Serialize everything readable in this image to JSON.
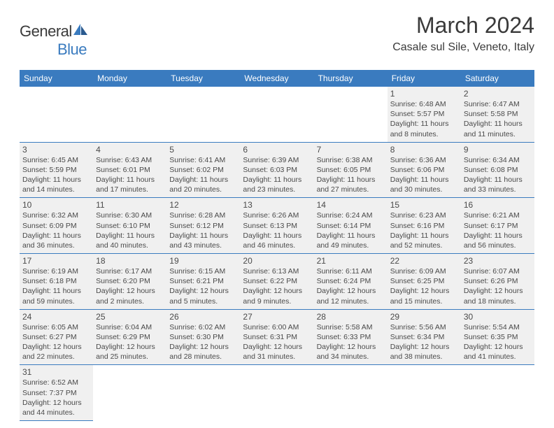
{
  "logo": {
    "text1": "General",
    "text2": "Blue"
  },
  "title": "March 2024",
  "location": "Casale sul Sile, Veneto, Italy",
  "colors": {
    "header_bg": "#3a7bbf",
    "cell_bg": "#f0f0f0",
    "cell_border": "#3a7bbf",
    "text": "#3a3a3a"
  },
  "weekdays": [
    "Sunday",
    "Monday",
    "Tuesday",
    "Wednesday",
    "Thursday",
    "Friday",
    "Saturday"
  ],
  "grid": {
    "leading_blanks": 5,
    "days": [
      {
        "n": "1",
        "sr": "6:48 AM",
        "ss": "5:57 PM",
        "dl": "11 hours and 8 minutes."
      },
      {
        "n": "2",
        "sr": "6:47 AM",
        "ss": "5:58 PM",
        "dl": "11 hours and 11 minutes."
      },
      {
        "n": "3",
        "sr": "6:45 AM",
        "ss": "5:59 PM",
        "dl": "11 hours and 14 minutes."
      },
      {
        "n": "4",
        "sr": "6:43 AM",
        "ss": "6:01 PM",
        "dl": "11 hours and 17 minutes."
      },
      {
        "n": "5",
        "sr": "6:41 AM",
        "ss": "6:02 PM",
        "dl": "11 hours and 20 minutes."
      },
      {
        "n": "6",
        "sr": "6:39 AM",
        "ss": "6:03 PM",
        "dl": "11 hours and 23 minutes."
      },
      {
        "n": "7",
        "sr": "6:38 AM",
        "ss": "6:05 PM",
        "dl": "11 hours and 27 minutes."
      },
      {
        "n": "8",
        "sr": "6:36 AM",
        "ss": "6:06 PM",
        "dl": "11 hours and 30 minutes."
      },
      {
        "n": "9",
        "sr": "6:34 AM",
        "ss": "6:08 PM",
        "dl": "11 hours and 33 minutes."
      },
      {
        "n": "10",
        "sr": "6:32 AM",
        "ss": "6:09 PM",
        "dl": "11 hours and 36 minutes."
      },
      {
        "n": "11",
        "sr": "6:30 AM",
        "ss": "6:10 PM",
        "dl": "11 hours and 40 minutes."
      },
      {
        "n": "12",
        "sr": "6:28 AM",
        "ss": "6:12 PM",
        "dl": "11 hours and 43 minutes."
      },
      {
        "n": "13",
        "sr": "6:26 AM",
        "ss": "6:13 PM",
        "dl": "11 hours and 46 minutes."
      },
      {
        "n": "14",
        "sr": "6:24 AM",
        "ss": "6:14 PM",
        "dl": "11 hours and 49 minutes."
      },
      {
        "n": "15",
        "sr": "6:23 AM",
        "ss": "6:16 PM",
        "dl": "11 hours and 52 minutes."
      },
      {
        "n": "16",
        "sr": "6:21 AM",
        "ss": "6:17 PM",
        "dl": "11 hours and 56 minutes."
      },
      {
        "n": "17",
        "sr": "6:19 AM",
        "ss": "6:18 PM",
        "dl": "11 hours and 59 minutes."
      },
      {
        "n": "18",
        "sr": "6:17 AM",
        "ss": "6:20 PM",
        "dl": "12 hours and 2 minutes."
      },
      {
        "n": "19",
        "sr": "6:15 AM",
        "ss": "6:21 PM",
        "dl": "12 hours and 5 minutes."
      },
      {
        "n": "20",
        "sr": "6:13 AM",
        "ss": "6:22 PM",
        "dl": "12 hours and 9 minutes."
      },
      {
        "n": "21",
        "sr": "6:11 AM",
        "ss": "6:24 PM",
        "dl": "12 hours and 12 minutes."
      },
      {
        "n": "22",
        "sr": "6:09 AM",
        "ss": "6:25 PM",
        "dl": "12 hours and 15 minutes."
      },
      {
        "n": "23",
        "sr": "6:07 AM",
        "ss": "6:26 PM",
        "dl": "12 hours and 18 minutes."
      },
      {
        "n": "24",
        "sr": "6:05 AM",
        "ss": "6:27 PM",
        "dl": "12 hours and 22 minutes."
      },
      {
        "n": "25",
        "sr": "6:04 AM",
        "ss": "6:29 PM",
        "dl": "12 hours and 25 minutes."
      },
      {
        "n": "26",
        "sr": "6:02 AM",
        "ss": "6:30 PM",
        "dl": "12 hours and 28 minutes."
      },
      {
        "n": "27",
        "sr": "6:00 AM",
        "ss": "6:31 PM",
        "dl": "12 hours and 31 minutes."
      },
      {
        "n": "28",
        "sr": "5:58 AM",
        "ss": "6:33 PM",
        "dl": "12 hours and 34 minutes."
      },
      {
        "n": "29",
        "sr": "5:56 AM",
        "ss": "6:34 PM",
        "dl": "12 hours and 38 minutes."
      },
      {
        "n": "30",
        "sr": "5:54 AM",
        "ss": "6:35 PM",
        "dl": "12 hours and 41 minutes."
      },
      {
        "n": "31",
        "sr": "6:52 AM",
        "ss": "7:37 PM",
        "dl": "12 hours and 44 minutes."
      }
    ],
    "labels": {
      "sunrise": "Sunrise:",
      "sunset": "Sunset:",
      "daylight": "Daylight:"
    }
  }
}
